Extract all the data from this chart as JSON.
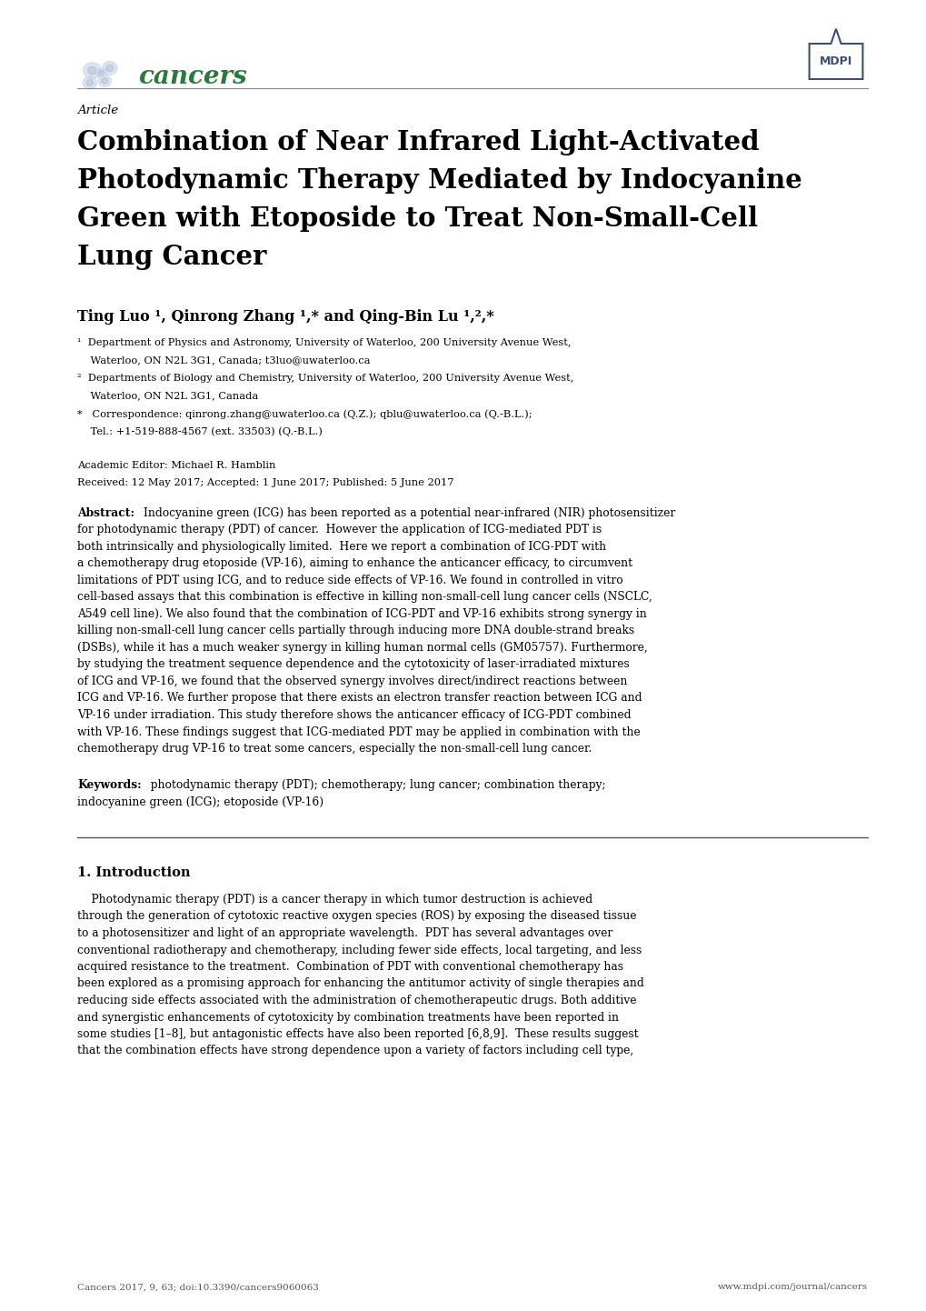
{
  "page_bg": "#ffffff",
  "lm_in": 0.85,
  "rm_in": 9.55,
  "cancers_logo_color": "#2b3d8f",
  "cancers_text_color": "#2b7a3d",
  "mdpi_color": "#3d4f6e",
  "article_label": "Article",
  "title_lines": [
    "Combination of Near Infrared Light-Activated",
    "Photodynamic Therapy Mediated by Indocyanine",
    "Green with Etoposide to Treat Non-Small-Cell",
    "Lung Cancer"
  ],
  "authors_line": "Ting Luo ¹, Qinrong Zhang ¹,* and Qing-Bin Lu ¹,²,*",
  "affil1a": "¹  Department of Physics and Astronomy, University of Waterloo, 200 University Avenue West,",
  "affil1b": "    Waterloo, ON N2L 3G1, Canada; t3luo@uwaterloo.ca",
  "affil2a": "²  Departments of Biology and Chemistry, University of Waterloo, 200 University Avenue West,",
  "affil2b": "    Waterloo, ON N2L 3G1, Canada",
  "affil3a": "*   Correspondence: qinrong.zhang@uwaterloo.ca (Q.Z.); qblu@uwaterloo.ca (Q.-B.L.);",
  "affil3b": "    Tel.: +1-519-888-4567 (ext. 33503) (Q.-B.L.)",
  "editor_line": "Academic Editor: Michael R. Hamblin",
  "dates_line": "Received: 12 May 2017; Accepted: 1 June 2017; Published: 5 June 2017",
  "abstract_label": "Abstract:",
  "abstract_lines": [
    "Indocyanine green (ICG) has been reported as a potential near-infrared (NIR) photosensitizer",
    "for photodynamic therapy (PDT) of cancer.  However the application of ICG-mediated PDT is",
    "both intrinsically and physiologically limited.  Here we report a combination of ICG-PDT with",
    "a chemotherapy drug etoposide (VP-16), aiming to enhance the anticancer efficacy, to circumvent",
    "limitations of PDT using ICG, and to reduce side effects of VP-16. We found in controlled in vitro",
    "cell-based assays that this combination is effective in killing non-small-cell lung cancer cells (NSCLC,",
    "A549 cell line). We also found that the combination of ICG-PDT and VP-16 exhibits strong synergy in",
    "killing non-small-cell lung cancer cells partially through inducing more DNA double-strand breaks",
    "(DSBs), while it has a much weaker synergy in killing human normal cells (GM05757). Furthermore,",
    "by studying the treatment sequence dependence and the cytotoxicity of laser-irradiated mixtures",
    "of ICG and VP-16, we found that the observed synergy involves direct/indirect reactions between",
    "ICG and VP-16. We further propose that there exists an electron transfer reaction between ICG and",
    "VP-16 under irradiation. This study therefore shows the anticancer efficacy of ICG-PDT combined",
    "with VP-16. These findings suggest that ICG-mediated PDT may be applied in combination with the",
    "chemotherapy drug VP-16 to treat some cancers, especially the non-small-cell lung cancer."
  ],
  "keywords_label": "Keywords:",
  "keywords_line1": "  photodynamic therapy (PDT); chemotherapy; lung cancer; combination therapy;",
  "keywords_line2": "indocyanine green (ICG); etoposide (VP-16)",
  "intro_heading": "1. Introduction",
  "intro_lines": [
    "    Photodynamic therapy (PDT) is a cancer therapy in which tumor destruction is achieved",
    "through the generation of cytotoxic reactive oxygen species (ROS) by exposing the diseased tissue",
    "to a photosensitizer and light of an appropriate wavelength.  PDT has several advantages over",
    "conventional radiotherapy and chemotherapy, including fewer side effects, local targeting, and less",
    "acquired resistance to the treatment.  Combination of PDT with conventional chemotherapy has",
    "been explored as a promising approach for enhancing the antitumor activity of single therapies and",
    "reducing side effects associated with the administration of chemotherapeutic drugs. Both additive",
    "and synergistic enhancements of cytotoxicity by combination treatments have been reported in",
    "some studies [1–8], but antagonistic effects have also been reported [6,8,9].  These results suggest",
    "that the combination effects have strong dependence upon a variety of factors including cell type,"
  ],
  "footer_left": "Cancers 2017, 9, 63; doi:10.3390/cancers9060063",
  "footer_right": "www.mdpi.com/journal/cancers"
}
